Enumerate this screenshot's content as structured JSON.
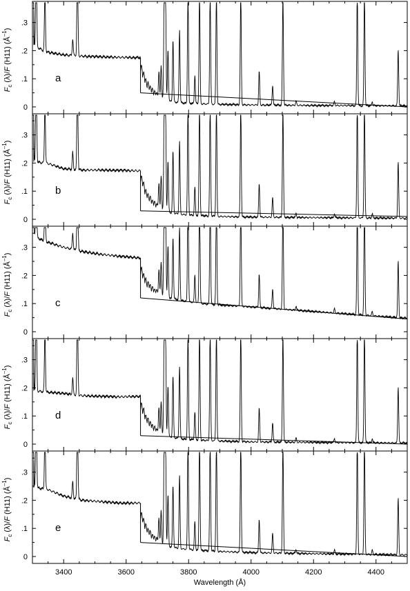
{
  "chart_data": {
    "type": "line",
    "xlabel": "Wavelength (Å)",
    "xlim": [
      3300,
      4500
    ],
    "x_ticks": [
      "3400",
      "3600",
      "3800",
      "4000",
      "4200",
      "4400"
    ],
    "ylabel": "F_c (λ)/ F (H11) (Å⁻¹)",
    "ylabel_parts": {
      "main": "F",
      "sub": "c",
      "mid": " (λ)/",
      "main2": "F",
      "rest": " (H11) (Å",
      "sup": "–1",
      "close": ")"
    },
    "y_ticks": [
      "0",
      ".1",
      ".2",
      ".3"
    ],
    "ylim": [
      0,
      0.36
    ],
    "balmer_jump": 3646,
    "emission_lines": [
      {
        "x": 3302,
        "h": 0.4
      },
      {
        "x": 3312,
        "h": 0.4
      },
      {
        "x": 3340,
        "h": 0.22
      },
      {
        "x": 3429,
        "h": 0.06
      },
      {
        "x": 3444,
        "h": 0.4
      },
      {
        "x": 3705,
        "h": 0.08
      },
      {
        "x": 3712,
        "h": 0.11
      },
      {
        "x": 3722,
        "h": 0.4
      },
      {
        "x": 3726,
        "h": 0.4
      },
      {
        "x": 3734,
        "h": 0.18
      },
      {
        "x": 3750,
        "h": 0.22
      },
      {
        "x": 3771,
        "h": 0.26
      },
      {
        "x": 3798,
        "h": 0.4
      },
      {
        "x": 3820,
        "h": 0.1
      },
      {
        "x": 3835,
        "h": 0.4
      },
      {
        "x": 3869,
        "h": 0.4
      },
      {
        "x": 3889,
        "h": 0.4
      },
      {
        "x": 3967,
        "h": 0.4
      },
      {
        "x": 4026,
        "h": 0.12
      },
      {
        "x": 4069,
        "h": 0.07
      },
      {
        "x": 4102,
        "h": 0.4
      },
      {
        "x": 4144,
        "h": 0.015
      },
      {
        "x": 4267,
        "h": 0.015
      },
      {
        "x": 4340,
        "h": 0.4
      },
      {
        "x": 4363,
        "h": 0.4
      },
      {
        "x": 4388,
        "h": 0.015
      },
      {
        "x": 4471,
        "h": 0.2
      }
    ],
    "panels": [
      {
        "label": "a",
        "continuum": {
          "x": [
            3300,
            3345,
            3400,
            3460,
            3520,
            3580,
            3645
          ],
          "y": [
            0.22,
            0.195,
            0.185,
            0.18,
            0.178,
            0.176,
            0.175
          ]
        },
        "post_jump": {
          "x": [
            3648,
            3665,
            3685,
            3710,
            3740,
            3780,
            3840,
            3900,
            4000,
            4200,
            4500
          ],
          "y": [
            0.12,
            0.07,
            0.045,
            0.03,
            0.02,
            0.014,
            0.011,
            0.009,
            0.007,
            0.005,
            0.004
          ]
        },
        "baseline": [
          {
            "x": 3646,
            "y": 0.05
          },
          {
            "x": 4500,
            "y": 0.0
          }
        ]
      },
      {
        "label": "b",
        "continuum": {
          "x": [
            3300,
            3345,
            3400,
            3460,
            3520,
            3580,
            3645
          ],
          "y": [
            0.205,
            0.2,
            0.18,
            0.175,
            0.175,
            0.174,
            0.172
          ]
        },
        "post_jump": {
          "x": [
            3648,
            3665,
            3685,
            3710,
            3740,
            3780,
            3840,
            3900,
            4000,
            4200,
            4500
          ],
          "y": [
            0.13,
            0.075,
            0.05,
            0.035,
            0.024,
            0.017,
            0.013,
            0.01,
            0.008,
            0.006,
            0.004
          ]
        },
        "baseline": [
          {
            "x": 3646,
            "y": 0.03
          },
          {
            "x": 4500,
            "y": 0.01
          }
        ]
      },
      {
        "label": "c",
        "continuum": {
          "x": [
            3300,
            3345,
            3400,
            3460,
            3520,
            3580,
            3645
          ],
          "y": [
            0.34,
            0.32,
            0.3,
            0.285,
            0.275,
            0.268,
            0.262
          ]
        },
        "post_jump": {
          "x": [
            3648,
            3665,
            3685,
            3710,
            3740,
            3780,
            3840,
            3900,
            4000,
            4200,
            4500
          ],
          "y": [
            0.2,
            0.16,
            0.14,
            0.13,
            0.12,
            0.11,
            0.1,
            0.095,
            0.088,
            0.072,
            0.048
          ]
        },
        "baseline": [
          {
            "x": 3646,
            "y": 0.12
          },
          {
            "x": 4500,
            "y": 0.045
          }
        ]
      },
      {
        "label": "d",
        "continuum": {
          "x": [
            3300,
            3345,
            3400,
            3460,
            3520,
            3580,
            3645
          ],
          "y": [
            0.19,
            0.185,
            0.18,
            0.172,
            0.17,
            0.168,
            0.17
          ]
        },
        "post_jump": {
          "x": [
            3648,
            3665,
            3685,
            3710,
            3740,
            3780,
            3840,
            3900,
            4000,
            4200,
            4500
          ],
          "y": [
            0.12,
            0.075,
            0.05,
            0.035,
            0.025,
            0.018,
            0.014,
            0.011,
            0.008,
            0.006,
            0.004
          ]
        },
        "baseline": [
          {
            "x": 3646,
            "y": 0.03
          },
          {
            "x": 4500,
            "y": 0.0
          }
        ]
      },
      {
        "label": "e",
        "continuum": {
          "x": [
            3300,
            3345,
            3400,
            3460,
            3520,
            3580,
            3645
          ],
          "y": [
            0.245,
            0.24,
            0.215,
            0.2,
            0.195,
            0.19,
            0.19
          ]
        },
        "post_jump": {
          "x": [
            3648,
            3665,
            3685,
            3710,
            3740,
            3780,
            3840,
            3900,
            4000,
            4200,
            4500
          ],
          "y": [
            0.13,
            0.085,
            0.06,
            0.045,
            0.035,
            0.027,
            0.022,
            0.018,
            0.014,
            0.01,
            0.006
          ]
        },
        "baseline": [
          {
            "x": 3646,
            "y": 0.05
          },
          {
            "x": 4500,
            "y": 0.0
          }
        ]
      }
    ]
  }
}
